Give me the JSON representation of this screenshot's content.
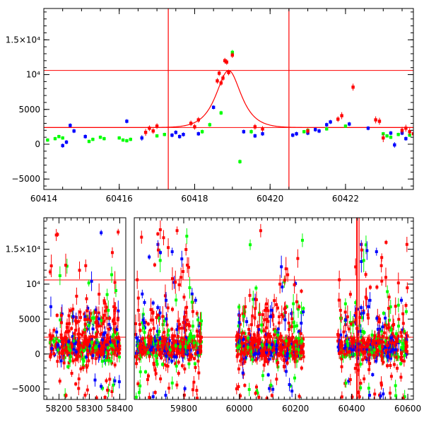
{
  "chart_data": [
    {
      "type": "scatter",
      "title": "",
      "xlabel": "",
      "ylabel": "",
      "xlim": [
        60414,
        60423.8
      ],
      "ylim": [
        -6500,
        19500
      ],
      "x_ticks": [
        60414,
        60416,
        60418,
        60420,
        60422
      ],
      "x_tick_labels": [
        "60414",
        "60416",
        "60418",
        "60420",
        "60422"
      ],
      "y_ticks": [
        -5000,
        0,
        5000,
        10000,
        15000
      ],
      "y_tick_labels": [
        "−5000",
        "0",
        "5000",
        "10⁴",
        "1.5×10⁴"
      ],
      "grid": false,
      "hlines": [
        2400,
        10600
      ],
      "vlines": [
        60417.3,
        60420.5
      ],
      "model_curve": {
        "color": "#ff0000",
        "baseline": 2400,
        "peak": 10600,
        "center": 60418.9,
        "width": 0.45
      },
      "series": [
        {
          "color": "#00ff00",
          "points": [
            [
              60414.1,
              600
            ],
            [
              60414.3,
              800
            ],
            [
              60414.4,
              1100
            ],
            [
              60414.5,
              900
            ],
            [
              60415.2,
              400
            ],
            [
              60415.3,
              700
            ],
            [
              60415.5,
              1000
            ],
            [
              60415.6,
              800
            ],
            [
              60416.0,
              900
            ],
            [
              60416.1,
              600
            ],
            [
              60416.2,
              500
            ],
            [
              60416.3,
              700
            ],
            [
              60417.0,
              1200
            ],
            [
              60417.2,
              1400
            ],
            [
              60418.2,
              1800
            ],
            [
              60418.4,
              2800
            ],
            [
              60418.7,
              4500
            ],
            [
              60419.0,
              13200
            ],
            [
              60419.2,
              -2500
            ],
            [
              60419.5,
              1800
            ],
            [
              60420.9,
              1800
            ],
            [
              60421.0,
              2000
            ],
            [
              60421.5,
              2200
            ],
            [
              60422.0,
              2600
            ],
            [
              60423.0,
              1500
            ],
            [
              60423.1,
              1200
            ],
            [
              60423.2,
              1000
            ],
            [
              60423.4,
              1400
            ],
            [
              60423.7,
              1300
            ]
          ],
          "errors": [
            250,
            250,
            250,
            250,
            250,
            250,
            250,
            250,
            250,
            250,
            250,
            250,
            250,
            250,
            300,
            300,
            300,
            350,
            300,
            300,
            250,
            250,
            250,
            250,
            250,
            250,
            250,
            250,
            250
          ]
        },
        {
          "color": "#0000ff",
          "points": [
            [
              60414.5,
              -200
            ],
            [
              60414.6,
              300
            ],
            [
              60414.7,
              2700
            ],
            [
              60414.8,
              1900
            ],
            [
              60415.1,
              1100
            ],
            [
              60416.2,
              3300
            ],
            [
              60416.6,
              900
            ],
            [
              60417.4,
              1300
            ],
            [
              60417.5,
              1700
            ],
            [
              60417.6,
              1100
            ],
            [
              60417.7,
              1400
            ],
            [
              60418.1,
              1500
            ],
            [
              60418.5,
              5300
            ],
            [
              60419.3,
              1800
            ],
            [
              60419.6,
              1200
            ],
            [
              60419.8,
              1500
            ],
            [
              60420.6,
              1300
            ],
            [
              60420.7,
              1500
            ],
            [
              60421.0,
              1600
            ],
            [
              60421.2,
              2100
            ],
            [
              60421.3,
              1900
            ],
            [
              60421.5,
              2800
            ],
            [
              60421.6,
              3200
            ],
            [
              60422.1,
              2900
            ],
            [
              60422.6,
              2300
            ],
            [
              60423.2,
              1600
            ],
            [
              60423.3,
              -100
            ],
            [
              60423.5,
              1600
            ],
            [
              60423.6,
              800
            ]
          ],
          "errors": [
            300,
            300,
            300,
            300,
            300,
            300,
            400,
            300,
            300,
            300,
            300,
            300,
            300,
            300,
            300,
            300,
            300,
            300,
            300,
            300,
            300,
            300,
            300,
            300,
            300,
            300,
            400,
            300,
            300
          ]
        },
        {
          "color": "#ff0000",
          "points": [
            [
              60416.7,
              1700
            ],
            [
              60416.8,
              2300
            ],
            [
              60416.9,
              1900
            ],
            [
              60417.0,
              2600
            ],
            [
              60417.9,
              3000
            ],
            [
              60418.0,
              2500
            ],
            [
              60418.1,
              3500
            ],
            [
              60418.6,
              9100
            ],
            [
              60418.65,
              10200
            ],
            [
              60418.7,
              8800
            ],
            [
              60418.75,
              9500
            ],
            [
              60418.8,
              12000
            ],
            [
              60418.85,
              11800
            ],
            [
              60418.9,
              10300
            ],
            [
              60419.0,
              12800
            ],
            [
              60419.6,
              2500
            ],
            [
              60419.8,
              2200
            ],
            [
              60421.0,
              1900
            ],
            [
              60421.8,
              3600
            ],
            [
              60421.9,
              4100
            ],
            [
              60422.2,
              8200
            ],
            [
              60422.8,
              3500
            ],
            [
              60422.9,
              3300
            ],
            [
              60423.0,
              900
            ],
            [
              60423.5,
              2000
            ],
            [
              60423.6,
              2300
            ],
            [
              60423.7,
              1800
            ],
            [
              60423.8,
              1500
            ]
          ],
          "errors": [
            500,
            400,
            400,
            400,
            400,
            400,
            400,
            400,
            400,
            400,
            400,
            400,
            400,
            400,
            400,
            400,
            400,
            400,
            400,
            500,
            500,
            500,
            500,
            600,
            500,
            500,
            500,
            500
          ]
        }
      ]
    },
    {
      "type": "scatter",
      "title": "",
      "xlabel": "",
      "ylabel": "",
      "ylim": [
        -6500,
        19500
      ],
      "segments": [
        {
          "xlim": [
            58150,
            58420
          ],
          "x_ticks": [
            58200,
            58300,
            58400
          ],
          "x_tick_labels": [
            "58200",
            "58300",
            "58400"
          ]
        },
        {
          "xlim": [
            59620,
            59890
          ],
          "x_ticks": [
            59800
          ],
          "x_tick_labels": [
            "59800"
          ]
        },
        {
          "xlim": [
            59890,
            60620
          ],
          "x_ticks": [
            60000,
            60200,
            60400,
            60600
          ],
          "x_tick_labels": [
            "60000",
            "60200",
            "60400",
            "60600"
          ]
        }
      ],
      "y_ticks": [
        -5000,
        0,
        5000,
        10000,
        15000
      ],
      "y_tick_labels": [
        "−5000",
        "0",
        "5000",
        "10⁴",
        "1.5×10⁴"
      ],
      "grid": false,
      "hlines": [
        2400,
        10600
      ],
      "vlines": [
        60418.9
      ],
      "season_ranges": [
        [
          58170,
          58400
        ],
        [
          59625,
          59865
        ],
        [
          59990,
          60230
        ],
        [
          60350,
          60600
        ]
      ],
      "series_colors": [
        "#00ff00",
        "#0000ff",
        "#ff0000"
      ]
    }
  ]
}
